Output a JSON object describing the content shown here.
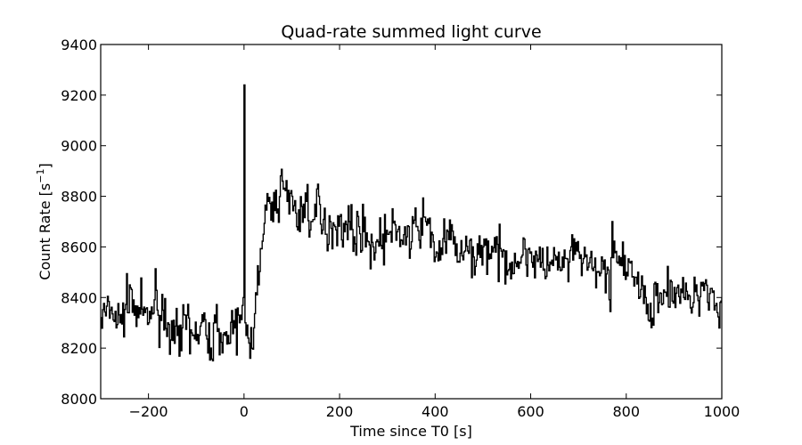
{
  "chart_data": {
    "type": "line",
    "title": "Quad-rate summed light curve",
    "xlabel": "Time since T0 [s]",
    "ylabel_parts": {
      "main": "Count Rate [s",
      "sup": "−1",
      "close": "]"
    },
    "xlim": [
      -300,
      1000
    ],
    "ylim": [
      8000,
      9400
    ],
    "x_ticks": [
      -200,
      0,
      200,
      400,
      600,
      800,
      1000
    ],
    "x_tick_labels": [
      "−200",
      "0",
      "200",
      "400",
      "600",
      "800",
      "1000"
    ],
    "y_ticks": [
      8000,
      8200,
      8400,
      8600,
      8800,
      9000,
      9200,
      9400
    ],
    "y_tick_labels": [
      "8000",
      "8200",
      "8400",
      "8600",
      "8800",
      "9000",
      "9200",
      "9400"
    ],
    "grid": false,
    "line_color": "#000000",
    "bin_width_s": 2,
    "series": [
      {
        "x": [
          -300,
          -280,
          -260,
          -245,
          -240,
          -230,
          -220,
          -200,
          -185,
          -180,
          -170,
          -160,
          -150,
          -140,
          -135,
          -130,
          -120,
          -110,
          -100,
          -90,
          -80,
          -70,
          -60,
          -50,
          -40,
          -30,
          -20,
          -10,
          -5,
          -2,
          0,
          2,
          4,
          10,
          20,
          25,
          30,
          40,
          45,
          50,
          60,
          65,
          70,
          75,
          80,
          85,
          90,
          100,
          110,
          120,
          130,
          140,
          150,
          155,
          160,
          170,
          180,
          190,
          200,
          210,
          220,
          230,
          240,
          250,
          260,
          270,
          280,
          300,
          320,
          340,
          350,
          360,
          380,
          395,
          400,
          420,
          440,
          450,
          460,
          480,
          500,
          520,
          540,
          560,
          580,
          600,
          620,
          640,
          660,
          680,
          700,
          720,
          740,
          760,
          765,
          770,
          780,
          800,
          820,
          840,
          855,
          860,
          880,
          900,
          920,
          940,
          960,
          980,
          990,
          1000
        ],
        "y": [
          8320,
          8350,
          8300,
          8380,
          8450,
          8330,
          8360,
          8300,
          8420,
          8330,
          8350,
          8300,
          8230,
          8250,
          8180,
          8280,
          8330,
          8260,
          8230,
          8300,
          8250,
          8200,
          8300,
          8260,
          8250,
          8220,
          8280,
          8300,
          8350,
          8400,
          9240,
          8300,
          8250,
          8220,
          8280,
          8500,
          8450,
          8650,
          8750,
          8780,
          8700,
          8820,
          8750,
          8800,
          8860,
          8900,
          8780,
          8800,
          8680,
          8760,
          8780,
          8700,
          8720,
          8800,
          8690,
          8650,
          8700,
          8680,
          8720,
          8660,
          8700,
          8640,
          8680,
          8660,
          8620,
          8600,
          8620,
          8650,
          8660,
          8640,
          8620,
          8680,
          8700,
          8640,
          8560,
          8620,
          8640,
          8540,
          8580,
          8560,
          8600,
          8580,
          8560,
          8540,
          8560,
          8580,
          8520,
          8540,
          8520,
          8540,
          8580,
          8520,
          8500,
          8520,
          8300,
          8700,
          8540,
          8500,
          8480,
          8400,
          8250,
          8460,
          8420,
          8440,
          8400,
          8380,
          8460,
          8420,
          8340,
          8400
        ]
      }
    ]
  }
}
